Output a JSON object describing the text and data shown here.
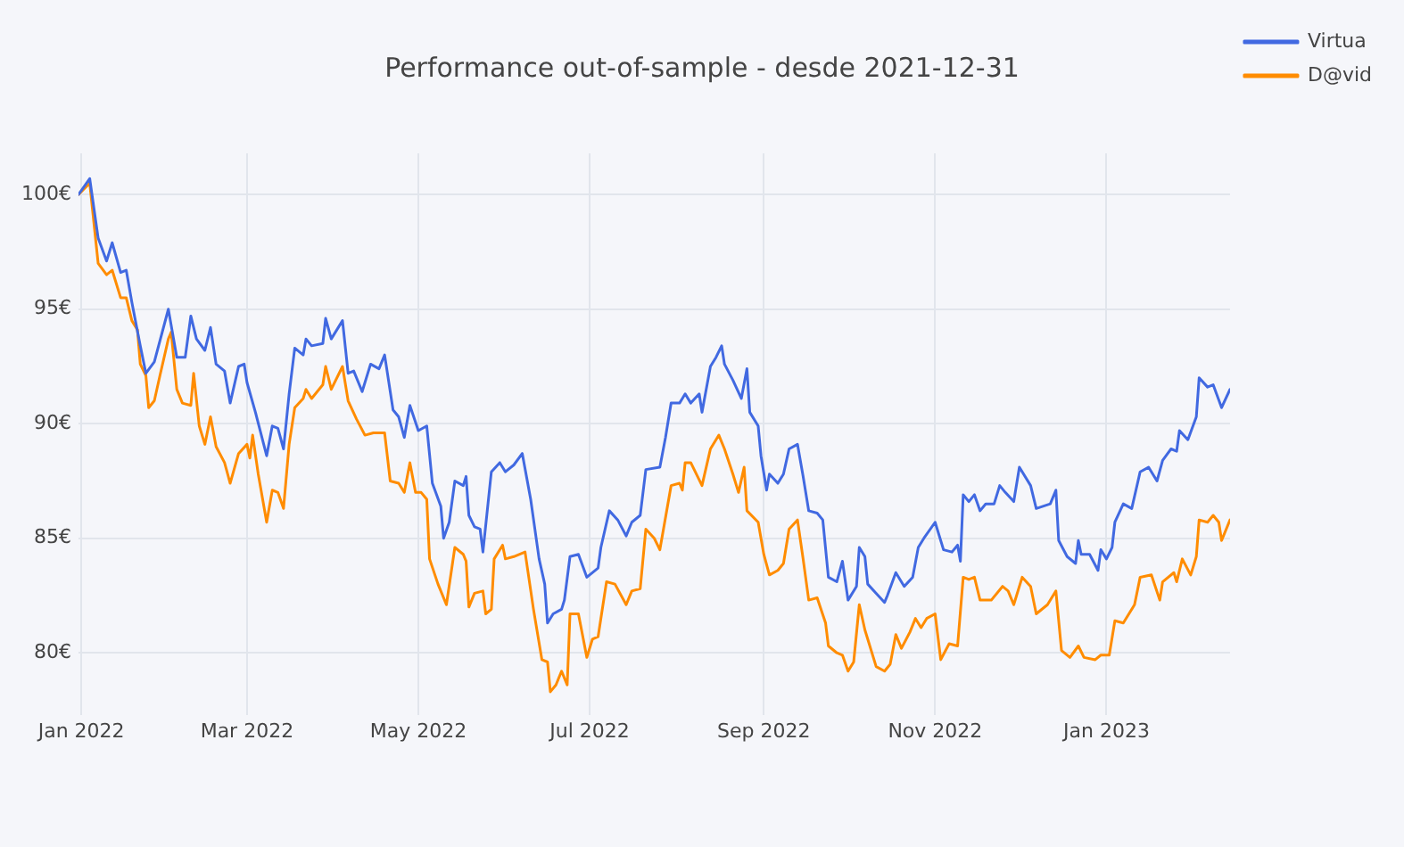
{
  "chart_data": {
    "type": "line",
    "title": "Performance out-of-sample - desde 2021-12-31",
    "legend": "top right",
    "grid": true,
    "marker": "none",
    "line_style": "solid",
    "xlim": [
      "2021-12-31",
      "2023-02-14"
    ],
    "xticks": [
      {
        "value": "2022-01-01",
        "label": "Jan 2022"
      },
      {
        "value": "2022-03-01",
        "label": "Mar 2022"
      },
      {
        "value": "2022-05-01",
        "label": "May 2022"
      },
      {
        "value": "2022-07-01",
        "label": "Jul 2022"
      },
      {
        "value": "2022-09-01",
        "label": "Sep 2022"
      },
      {
        "value": "2022-11-01",
        "label": "Nov 2022"
      },
      {
        "value": "2023-01-01",
        "label": "Jan 2023"
      }
    ],
    "ylim": [
      77.3,
      101.8
    ],
    "yticks": [
      {
        "value": 80,
        "label": "80€"
      },
      {
        "value": 85,
        "label": "85€"
      },
      {
        "value": 90,
        "label": "90€"
      },
      {
        "value": 95,
        "label": "95€"
      },
      {
        "value": 100,
        "label": "100€"
      }
    ],
    "series": [
      {
        "name": "Virtua",
        "color": "#4169e1",
        "x": [
          "2021-12-31",
          "2022-01-04",
          "2022-01-07",
          "2022-01-10",
          "2022-01-12",
          "2022-01-15",
          "2022-01-17",
          "2022-01-19",
          "2022-01-22",
          "2022-01-24",
          "2022-01-27",
          "2022-02-01",
          "2022-02-04",
          "2022-02-07",
          "2022-02-09",
          "2022-02-11",
          "2022-02-14",
          "2022-02-16",
          "2022-02-18",
          "2022-02-21",
          "2022-02-23",
          "2022-02-26",
          "2022-02-28",
          "2022-03-01",
          "2022-03-04",
          "2022-03-08",
          "2022-03-10",
          "2022-03-12",
          "2022-03-14",
          "2022-03-16",
          "2022-03-18",
          "2022-03-21",
          "2022-03-22",
          "2022-03-24",
          "2022-03-28",
          "2022-03-29",
          "2022-03-31",
          "2022-04-04",
          "2022-04-06",
          "2022-04-08",
          "2022-04-11",
          "2022-04-14",
          "2022-04-17",
          "2022-04-19",
          "2022-04-22",
          "2022-04-24",
          "2022-04-26",
          "2022-04-28",
          "2022-05-01",
          "2022-05-04",
          "2022-05-06",
          "2022-05-09",
          "2022-05-10",
          "2022-05-12",
          "2022-05-14",
          "2022-05-17",
          "2022-05-18",
          "2022-05-19",
          "2022-05-21",
          "2022-05-23",
          "2022-05-24",
          "2022-05-27",
          "2022-05-30",
          "2022-06-01",
          "2022-06-04",
          "2022-06-07",
          "2022-06-10",
          "2022-06-13",
          "2022-06-15",
          "2022-06-16",
          "2022-06-18",
          "2022-06-21",
          "2022-06-22",
          "2022-06-24",
          "2022-06-27",
          "2022-06-30",
          "2022-07-04",
          "2022-07-05",
          "2022-07-08",
          "2022-07-11",
          "2022-07-14",
          "2022-07-16",
          "2022-07-19",
          "2022-07-21",
          "2022-07-26",
          "2022-07-28",
          "2022-07-30",
          "2022-08-02",
          "2022-08-04",
          "2022-08-06",
          "2022-08-09",
          "2022-08-10",
          "2022-08-13",
          "2022-08-15",
          "2022-08-17",
          "2022-08-18",
          "2022-08-21",
          "2022-08-24",
          "2022-08-26",
          "2022-08-27",
          "2022-08-30",
          "2022-08-31",
          "2022-09-02",
          "2022-09-03",
          "2022-09-06",
          "2022-09-08",
          "2022-09-10",
          "2022-09-13",
          "2022-09-15",
          "2022-09-17",
          "2022-09-20",
          "2022-09-22",
          "2022-09-24",
          "2022-09-27",
          "2022-09-29",
          "2022-10-01",
          "2022-10-04",
          "2022-10-05",
          "2022-10-07",
          "2022-10-08",
          "2022-10-11",
          "2022-10-14",
          "2022-10-15",
          "2022-10-18",
          "2022-10-21",
          "2022-10-24",
          "2022-10-26",
          "2022-10-28",
          "2022-11-01",
          "2022-11-04",
          "2022-11-07",
          "2022-11-09",
          "2022-11-10",
          "2022-11-11",
          "2022-11-13",
          "2022-11-15",
          "2022-11-17",
          "2022-11-19",
          "2022-11-22",
          "2022-11-24",
          "2022-11-26",
          "2022-11-29",
          "2022-12-01",
          "2022-12-05",
          "2022-12-07",
          "2022-12-12",
          "2022-12-14",
          "2022-12-15",
          "2022-12-18",
          "2022-12-21",
          "2022-12-22",
          "2022-12-23",
          "2022-12-26",
          "2022-12-29",
          "2022-12-30",
          "2023-01-01",
          "2023-01-03",
          "2023-01-04",
          "2023-01-07",
          "2023-01-10",
          "2023-01-13",
          "2023-01-16",
          "2023-01-19",
          "2023-01-21",
          "2023-01-24",
          "2023-01-26",
          "2023-01-27",
          "2023-01-30",
          "2023-02-02",
          "2023-02-03",
          "2023-02-06",
          "2023-02-08",
          "2023-02-11",
          "2023-02-14"
        ],
        "values": [
          100.0,
          100.7,
          98.1,
          97.1,
          97.9,
          96.6,
          96.7,
          95.3,
          93.4,
          92.2,
          92.7,
          95.0,
          92.9,
          92.9,
          94.7,
          93.7,
          93.2,
          94.2,
          92.6,
          92.3,
          90.9,
          92.5,
          92.6,
          91.8,
          90.5,
          88.6,
          89.9,
          89.8,
          88.9,
          91.3,
          93.3,
          93.0,
          93.7,
          93.4,
          93.5,
          94.6,
          93.7,
          94.5,
          92.2,
          92.3,
          91.4,
          92.6,
          92.4,
          93.0,
          90.6,
          90.3,
          89.4,
          90.8,
          89.7,
          89.9,
          87.4,
          86.4,
          85.0,
          85.7,
          87.5,
          87.3,
          87.7,
          86.0,
          85.5,
          85.4,
          84.4,
          87.9,
          88.3,
          87.9,
          88.2,
          88.7,
          86.7,
          84.1,
          83.0,
          81.3,
          81.7,
          81.9,
          82.3,
          84.2,
          84.3,
          83.3,
          83.7,
          84.6,
          86.2,
          85.8,
          85.1,
          85.7,
          86.0,
          88.0,
          88.1,
          89.4,
          90.9,
          90.9,
          91.3,
          90.9,
          91.3,
          90.5,
          92.5,
          92.9,
          93.4,
          92.6,
          91.9,
          91.1,
          92.4,
          90.5,
          89.9,
          88.6,
          87.1,
          87.8,
          87.4,
          87.8,
          88.9,
          89.1,
          87.7,
          86.2,
          86.1,
          85.8,
          83.3,
          83.1,
          84.0,
          82.3,
          82.9,
          84.6,
          84.2,
          83.0,
          82.6,
          82.2,
          82.5,
          83.5,
          82.9,
          83.3,
          84.6,
          85.0,
          85.7,
          84.5,
          84.4,
          84.7,
          84.0,
          86.9,
          86.6,
          86.9,
          86.2,
          86.5,
          86.5,
          87.3,
          87.0,
          86.6,
          88.1,
          87.3,
          86.3,
          86.5,
          87.1,
          84.9,
          84.2,
          83.9,
          84.9,
          84.3,
          84.3,
          83.6,
          84.5,
          84.1,
          84.6,
          85.7,
          86.5,
          86.3,
          87.9,
          88.1,
          87.5,
          88.4,
          88.9,
          88.8,
          89.7,
          89.3,
          90.3,
          92.0,
          91.6,
          91.7,
          90.7,
          91.5
        ]
      },
      {
        "name": "D@vid",
        "color": "#ff8c00",
        "x": [
          "2021-12-31",
          "2022-01-04",
          "2022-01-07",
          "2022-01-10",
          "2022-01-12",
          "2022-01-15",
          "2022-01-17",
          "2022-01-19",
          "2022-01-21",
          "2022-01-22",
          "2022-01-24",
          "2022-01-25",
          "2022-01-27",
          "2022-01-29",
          "2022-02-01",
          "2022-02-02",
          "2022-02-04",
          "2022-02-06",
          "2022-02-09",
          "2022-02-10",
          "2022-02-12",
          "2022-02-14",
          "2022-02-16",
          "2022-02-18",
          "2022-02-21",
          "2022-02-23",
          "2022-02-26",
          "2022-03-01",
          "2022-03-02",
          "2022-03-03",
          "2022-03-05",
          "2022-03-08",
          "2022-03-10",
          "2022-03-12",
          "2022-03-14",
          "2022-03-16",
          "2022-03-18",
          "2022-03-21",
          "2022-03-22",
          "2022-03-24",
          "2022-03-28",
          "2022-03-29",
          "2022-03-31",
          "2022-04-04",
          "2022-04-06",
          "2022-04-09",
          "2022-04-12",
          "2022-04-15",
          "2022-04-19",
          "2022-04-21",
          "2022-04-24",
          "2022-04-26",
          "2022-04-28",
          "2022-04-30",
          "2022-05-02",
          "2022-05-04",
          "2022-05-05",
          "2022-05-08",
          "2022-05-11",
          "2022-05-14",
          "2022-05-17",
          "2022-05-18",
          "2022-05-19",
          "2022-05-21",
          "2022-05-24",
          "2022-05-25",
          "2022-05-27",
          "2022-05-28",
          "2022-05-31",
          "2022-06-01",
          "2022-06-04",
          "2022-06-08",
          "2022-06-11",
          "2022-06-14",
          "2022-06-16",
          "2022-06-17",
          "2022-06-19",
          "2022-06-21",
          "2022-06-23",
          "2022-06-24",
          "2022-06-27",
          "2022-06-30",
          "2022-07-02",
          "2022-07-04",
          "2022-07-07",
          "2022-07-10",
          "2022-07-14",
          "2022-07-16",
          "2022-07-19",
          "2022-07-21",
          "2022-07-24",
          "2022-07-26",
          "2022-07-30",
          "2022-08-02",
          "2022-08-03",
          "2022-08-04",
          "2022-08-06",
          "2022-08-10",
          "2022-08-13",
          "2022-08-16",
          "2022-08-18",
          "2022-08-21",
          "2022-08-23",
          "2022-08-25",
          "2022-08-26",
          "2022-08-30",
          "2022-09-01",
          "2022-09-03",
          "2022-09-06",
          "2022-09-08",
          "2022-09-10",
          "2022-09-13",
          "2022-09-15",
          "2022-09-17",
          "2022-09-20",
          "2022-09-23",
          "2022-09-24",
          "2022-09-27",
          "2022-09-29",
          "2022-10-01",
          "2022-10-03",
          "2022-10-05",
          "2022-10-07",
          "2022-10-11",
          "2022-10-14",
          "2022-10-16",
          "2022-10-18",
          "2022-10-20",
          "2022-10-23",
          "2022-10-25",
          "2022-10-27",
          "2022-10-29",
          "2022-11-01",
          "2022-11-03",
          "2022-11-06",
          "2022-11-09",
          "2022-11-11",
          "2022-11-13",
          "2022-11-15",
          "2022-11-17",
          "2022-11-21",
          "2022-11-25",
          "2022-11-27",
          "2022-11-29",
          "2022-12-02",
          "2022-12-05",
          "2022-12-07",
          "2022-12-11",
          "2022-12-14",
          "2022-12-16",
          "2022-12-19",
          "2022-12-22",
          "2022-12-24",
          "2022-12-28",
          "2022-12-30",
          "2023-01-02",
          "2023-01-04",
          "2023-01-07",
          "2023-01-11",
          "2023-01-13",
          "2023-01-17",
          "2023-01-20",
          "2023-01-21",
          "2023-01-25",
          "2023-01-26",
          "2023-01-28",
          "2023-01-31",
          "2023-02-02",
          "2023-02-03",
          "2023-02-06",
          "2023-02-08",
          "2023-02-10",
          "2023-02-11",
          "2023-02-14"
        ],
        "values": [
          100.0,
          100.5,
          97.0,
          96.5,
          96.7,
          95.5,
          95.5,
          94.5,
          94.1,
          92.6,
          92.1,
          90.7,
          91.0,
          92.1,
          93.7,
          94.0,
          91.5,
          90.9,
          90.8,
          92.2,
          89.9,
          89.1,
          90.3,
          89.0,
          88.3,
          87.4,
          88.7,
          89.1,
          88.5,
          89.5,
          87.8,
          85.7,
          87.1,
          87.0,
          86.3,
          89.1,
          90.7,
          91.1,
          91.5,
          91.1,
          91.7,
          92.5,
          91.5,
          92.5,
          91.0,
          90.2,
          89.5,
          89.6,
          89.6,
          87.5,
          87.4,
          87.0,
          88.3,
          87.0,
          87.0,
          86.7,
          84.1,
          83.0,
          82.1,
          84.6,
          84.3,
          84.0,
          82.0,
          82.6,
          82.7,
          81.7,
          81.9,
          84.1,
          84.7,
          84.1,
          84.2,
          84.4,
          81.9,
          79.7,
          79.6,
          78.3,
          78.6,
          79.2,
          78.6,
          81.7,
          81.7,
          79.8,
          80.6,
          80.7,
          83.1,
          83.0,
          82.1,
          82.7,
          82.8,
          85.4,
          85.0,
          84.5,
          87.3,
          87.4,
          87.1,
          88.3,
          88.3,
          87.3,
          88.9,
          89.5,
          88.9,
          87.8,
          87.0,
          88.1,
          86.2,
          85.7,
          84.3,
          83.4,
          83.6,
          83.9,
          85.4,
          85.8,
          84.1,
          82.3,
          82.4,
          81.3,
          80.3,
          80.0,
          79.9,
          79.2,
          79.6,
          82.1,
          81.0,
          79.4,
          79.2,
          79.5,
          80.8,
          80.2,
          80.9,
          81.5,
          81.1,
          81.5,
          81.7,
          79.7,
          80.4,
          80.3,
          83.3,
          83.2,
          83.3,
          82.3,
          82.3,
          82.9,
          82.7,
          82.1,
          83.3,
          82.9,
          81.7,
          82.1,
          82.7,
          80.1,
          79.8,
          80.3,
          79.8,
          79.7,
          79.9,
          79.9,
          81.4,
          81.3,
          82.1,
          83.3,
          83.4,
          82.3,
          83.1,
          83.5,
          83.1,
          84.1,
          83.4,
          84.2,
          85.8,
          85.7,
          86.0,
          85.7,
          84.9,
          85.8
        ]
      }
    ]
  }
}
